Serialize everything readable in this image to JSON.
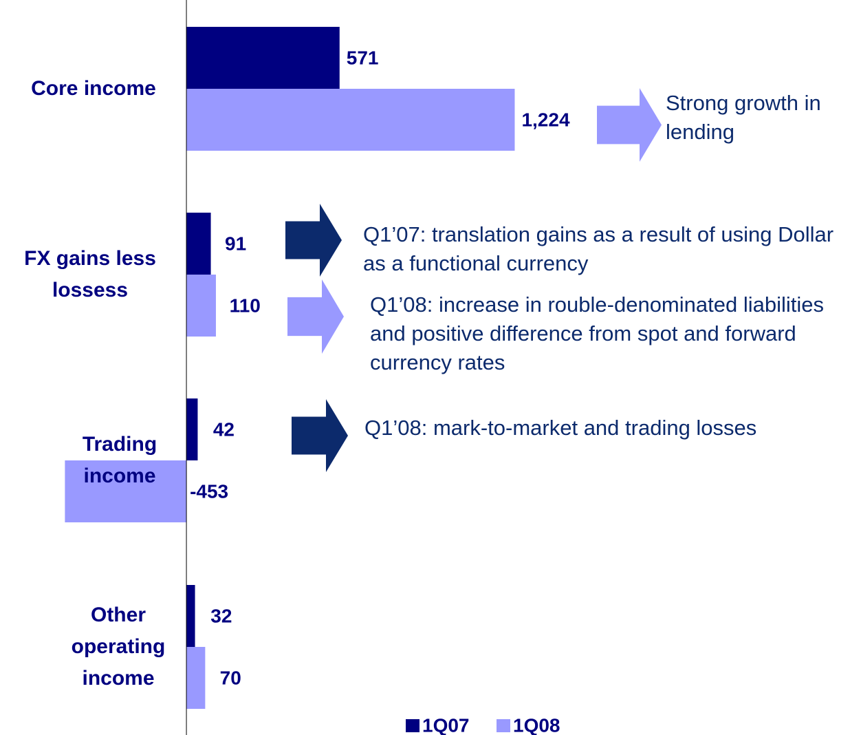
{
  "chart_data": {
    "type": "hbar",
    "categories": [
      "Core income",
      "FX gains less lossess",
      "Trading income",
      "Other operating income"
    ],
    "series": [
      {
        "name": "1Q07",
        "color": "#000080",
        "values": [
          571,
          91,
          42,
          32
        ]
      },
      {
        "name": "1Q08",
        "color": "#9999ff",
        "values": [
          1224,
          110,
          -453,
          70
        ],
        "value_labels": [
          "1,224",
          "110",
          "-453",
          "70"
        ]
      }
    ],
    "xlim": [
      -695,
      2474
    ],
    "legend": "bottom",
    "annotations": [
      {
        "text": "Strong growth in lending",
        "color": "#9999ff"
      },
      {
        "text": "Q1’07: translation gains as a result of using Dollar as a functional currency",
        "color": "#0c2a6c"
      },
      {
        "text": "Q1’08: increase in rouble-denominated liabilities and positive difference from spot and forward currency rates",
        "color": "#9999ff"
      },
      {
        "text": "Q1’08: mark-to-market and trading losses",
        "color": "#0c2a6c"
      }
    ]
  }
}
